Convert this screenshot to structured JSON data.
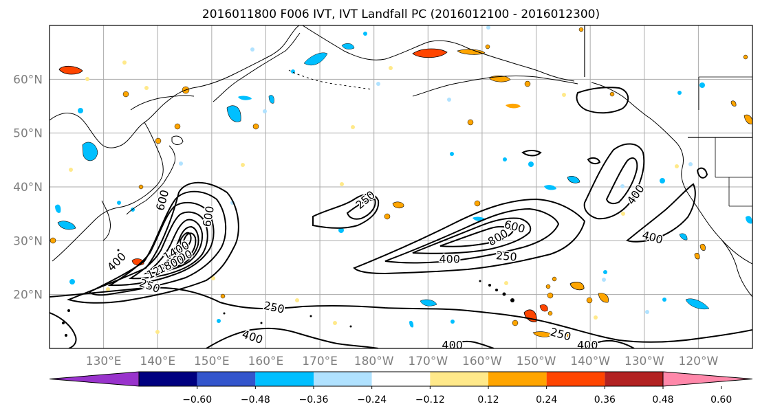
{
  "figure": {
    "title": "2016011800 F006 IVT, IVT Landfall PC (2016012100 - 2016012300)"
  },
  "map": {
    "extent": {
      "lon_min": 120,
      "lon_max": 250,
      "lat_min": 10,
      "lat_max": 70
    },
    "lat_ticks": [
      "60°N",
      "50°N",
      "40°N",
      "30°N",
      "20°N"
    ],
    "lon_ticks": [
      "130°E",
      "140°E",
      "150°E",
      "160°E",
      "170°E",
      "180°W",
      "170°W",
      "160°W",
      "150°W",
      "140°W",
      "130°W",
      "120°W"
    ],
    "grid": true
  },
  "contours": {
    "labels": [
      {
        "text": "250",
        "lon": 178.5,
        "lat": 37.5,
        "rot": -40
      },
      {
        "text": "250",
        "lon": 138.5,
        "lat": 21.5,
        "rot": 20
      },
      {
        "text": "400",
        "lon": 132.5,
        "lat": 26.0,
        "rot": -45
      },
      {
        "text": "600",
        "lon": 141.0,
        "lat": 37.5,
        "rot": -75
      },
      {
        "text": "600",
        "lon": 149.5,
        "lat": 34.5,
        "rot": -80
      },
      {
        "text": "1200",
        "lon": 140.5,
        "lat": 24.5,
        "rot": -25
      },
      {
        "text": "1400",
        "lon": 143.5,
        "lat": 28.0,
        "rot": -30
      },
      {
        "text": "1600",
        "lon": 144.0,
        "lat": 26.5,
        "rot": -25
      },
      {
        "text": "1800",
        "lon": 142.5,
        "lat": 25.5,
        "rot": -25
      },
      {
        "text": "600",
        "lon": 206.0,
        "lat": 32.5,
        "rot": 15
      },
      {
        "text": "800",
        "lon": 203.0,
        "lat": 30.5,
        "rot": -30
      },
      {
        "text": "400",
        "lon": 194.0,
        "lat": 26.5,
        "rot": 0
      },
      {
        "text": "250",
        "lon": 204.5,
        "lat": 27.0,
        "rot": 5
      },
      {
        "text": "400",
        "lon": 228.5,
        "lat": 38.5,
        "rot": -55
      },
      {
        "text": "400",
        "lon": 231.5,
        "lat": 30.5,
        "rot": 15
      },
      {
        "text": "250",
        "lon": 161.5,
        "lat": 17.5,
        "rot": 12
      },
      {
        "text": "400",
        "lon": 157.5,
        "lat": 12.0,
        "rot": 18
      },
      {
        "text": "250",
        "lon": 214.5,
        "lat": 12.5,
        "rot": 15
      },
      {
        "text": "400",
        "lon": 194.5,
        "lat": 10.5,
        "rot": 0
      },
      {
        "text": "400",
        "lon": 219.5,
        "lat": 10.5,
        "rot": 0
      }
    ]
  },
  "colorbar": {
    "colors": [
      "#9933cc",
      "#000080",
      "#3355cc",
      "#00bfff",
      "#b0e2ff",
      "#ffffff",
      "#ffe98a",
      "#ffa500",
      "#ff4500",
      "#b22222",
      "#ff88aa"
    ],
    "tick_labels": [
      "−0.60",
      "−0.48",
      "−0.36",
      "−0.24",
      "−0.12",
      "0.12",
      "0.24",
      "0.36",
      "0.48",
      "0.60"
    ]
  }
}
